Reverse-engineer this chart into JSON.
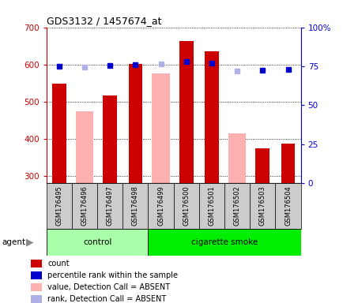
{
  "title": "GDS3132 / 1457674_at",
  "samples": [
    "GSM176495",
    "GSM176496",
    "GSM176497",
    "GSM176498",
    "GSM176499",
    "GSM176500",
    "GSM176501",
    "GSM176502",
    "GSM176503",
    "GSM176504"
  ],
  "count_present": [
    549,
    null,
    516,
    601,
    null,
    662,
    636,
    null,
    374,
    387
  ],
  "count_absent": [
    null,
    473,
    null,
    null,
    575,
    null,
    null,
    415,
    null,
    null
  ],
  "rank_present_pct": [
    75.0,
    null,
    75.5,
    76.0,
    null,
    78.0,
    77.0,
    null,
    72.5,
    73.0
  ],
  "rank_absent_pct": [
    null,
    74.5,
    null,
    null,
    76.5,
    null,
    null,
    72.0,
    null,
    null
  ],
  "ylim_left": [
    280,
    700
  ],
  "ylim_right": [
    0,
    100
  ],
  "left_ticks": [
    300,
    400,
    500,
    600,
    700
  ],
  "right_ticks": [
    0,
    25,
    50,
    75,
    100
  ],
  "right_tick_labels": [
    "0",
    "25",
    "50",
    "75",
    "100%"
  ],
  "color_count": "#cc0000",
  "color_rank": "#0000cc",
  "color_absent_bar": "#ffb0b0",
  "color_absent_rank": "#b0b0e8",
  "background_plot": "#ffffff",
  "background_xtick": "#cccccc",
  "background_control": "#aaffaa",
  "background_smoke": "#00ee00",
  "n_control": 4,
  "n_total": 10,
  "agent_label": "agent",
  "control_label": "control",
  "smoke_label": "cigarette smoke",
  "legend_items": [
    {
      "color": "#cc0000",
      "label": "count"
    },
    {
      "color": "#0000cc",
      "label": "percentile rank within the sample"
    },
    {
      "color": "#ffb0b0",
      "label": "value, Detection Call = ABSENT"
    },
    {
      "color": "#b0b0e8",
      "label": "rank, Detection Call = ABSENT"
    }
  ]
}
